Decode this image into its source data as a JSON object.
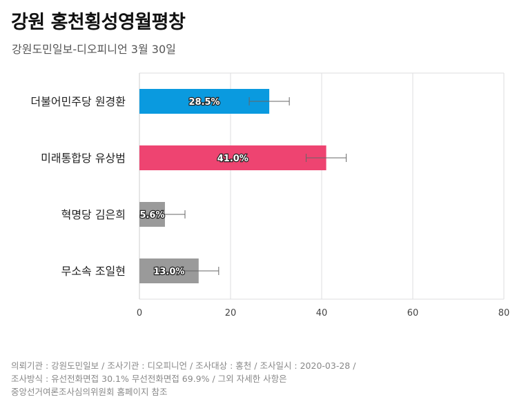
{
  "header": {
    "title": "강원 홍천횡성영월평창",
    "subtitle": "강원도민일보-디오피니언 3월 30일"
  },
  "chart_data": {
    "type": "bar",
    "orientation": "horizontal",
    "categories": [
      "더불어민주당 원경환",
      "미래통합당 유상범",
      "혁명당 김은희",
      "무소속 조일현"
    ],
    "values": [
      28.5,
      41.0,
      5.6,
      13.0
    ],
    "value_labels": [
      "28.5%",
      "41.0%",
      "5.6%",
      "13.0%"
    ],
    "error_margin": 4.4,
    "colors": [
      "#0A9ADF",
      "#EE4471",
      "#9A9A9A",
      "#9A9A9A"
    ],
    "xlim": [
      0,
      80
    ],
    "xticks": [
      0,
      20,
      40,
      60,
      80
    ],
    "grid": true,
    "title": "강원 홍천횡성영월평창",
    "xlabel": "",
    "ylabel": ""
  },
  "footer": {
    "line1": "의뢰기관 : 강원도민일보 / 조사기관 : 디오피니언 / 조사대상 : 홍천 / 조사일시 : 2020-03-28 /",
    "line2": "조사방식 : 유선전화면접 30.1% 무선전화면접 69.9% / 그외 자세한 사항은",
    "line3": "중앙선거여론조사심의위원회 홈페이지 참조"
  },
  "style": {
    "grid_color": "#DDDDDF",
    "axis_color": "#CCCCCC",
    "error_bar_color": "#666666",
    "tick_label_color": "#444444",
    "category_label_color": "#222222"
  }
}
